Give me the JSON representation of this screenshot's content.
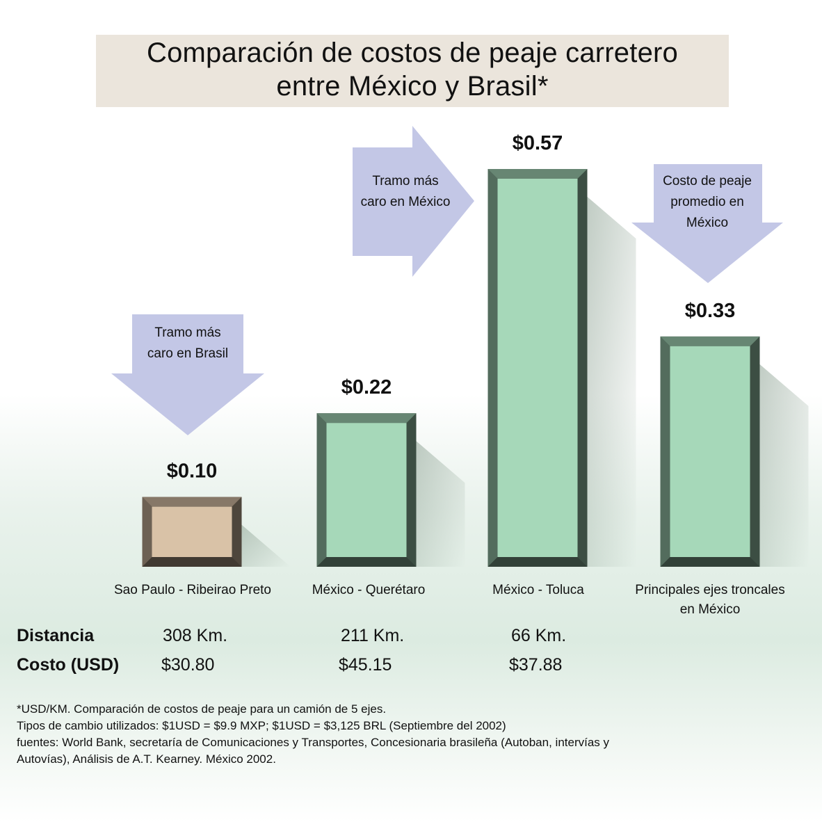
{
  "title_line1": "Comparación de costos de peaje carretero",
  "title_line2": "entre México y Brasil*",
  "colors": {
    "brazil_bar": "#d9c2a7",
    "mexico_bar": "#a6d8b9",
    "arrow": "#c3c7e6",
    "title_bg": "#ebe5dc"
  },
  "chart_data": {
    "type": "bar",
    "title": "Comparación de costos de peaje carretero entre México y Brasil*",
    "unit": "USD/KM",
    "categories": [
      "Sao Paulo - Ribeirao Preto",
      "México - Querétaro",
      "México - Toluca",
      "Principales ejes troncales en México"
    ],
    "values": [
      0.1,
      0.22,
      0.57,
      0.33
    ],
    "value_labels": [
      "$0.10",
      "$0.22",
      "$0.57",
      "$0.33"
    ],
    "ylim": [
      0,
      0.6
    ],
    "grid": false,
    "legend": "none"
  },
  "annotations": {
    "brasil": [
      "Tramo más",
      "caro en Brasil"
    ],
    "mexico": [
      "Tramo más",
      "caro en México"
    ],
    "promedio": [
      "Costo de peaje",
      "promedio en",
      "México"
    ]
  },
  "category_lines": [
    [
      "Sao Paulo - Ribeirao Preto"
    ],
    [
      "México - Querétaro"
    ],
    [
      "México - Toluca"
    ],
    [
      "Principales ejes troncales",
      "en México"
    ]
  ],
  "table": {
    "distancia_label": "Distancia",
    "costo_label": "Costo (USD)",
    "distancia": [
      "308 Km.",
      "211 Km.",
      "66 Km."
    ],
    "costo": [
      "$30.80",
      "$45.15",
      "$37.88"
    ]
  },
  "footnotes": [
    "*USD/KM. Comparación de costos de peaje para un camión de 5 ejes.",
    "Tipos de cambio utilizados: $1USD = $9.9 MXP; $1USD = $3,125 BRL (Septiembre del 2002)",
    "fuentes: World Bank, secretaría de Comunicaciones y Transportes, Concesionaria brasileña (Autoban, intervías y",
    "Autovías), Análisis de A.T. Kearney. México 2002."
  ]
}
